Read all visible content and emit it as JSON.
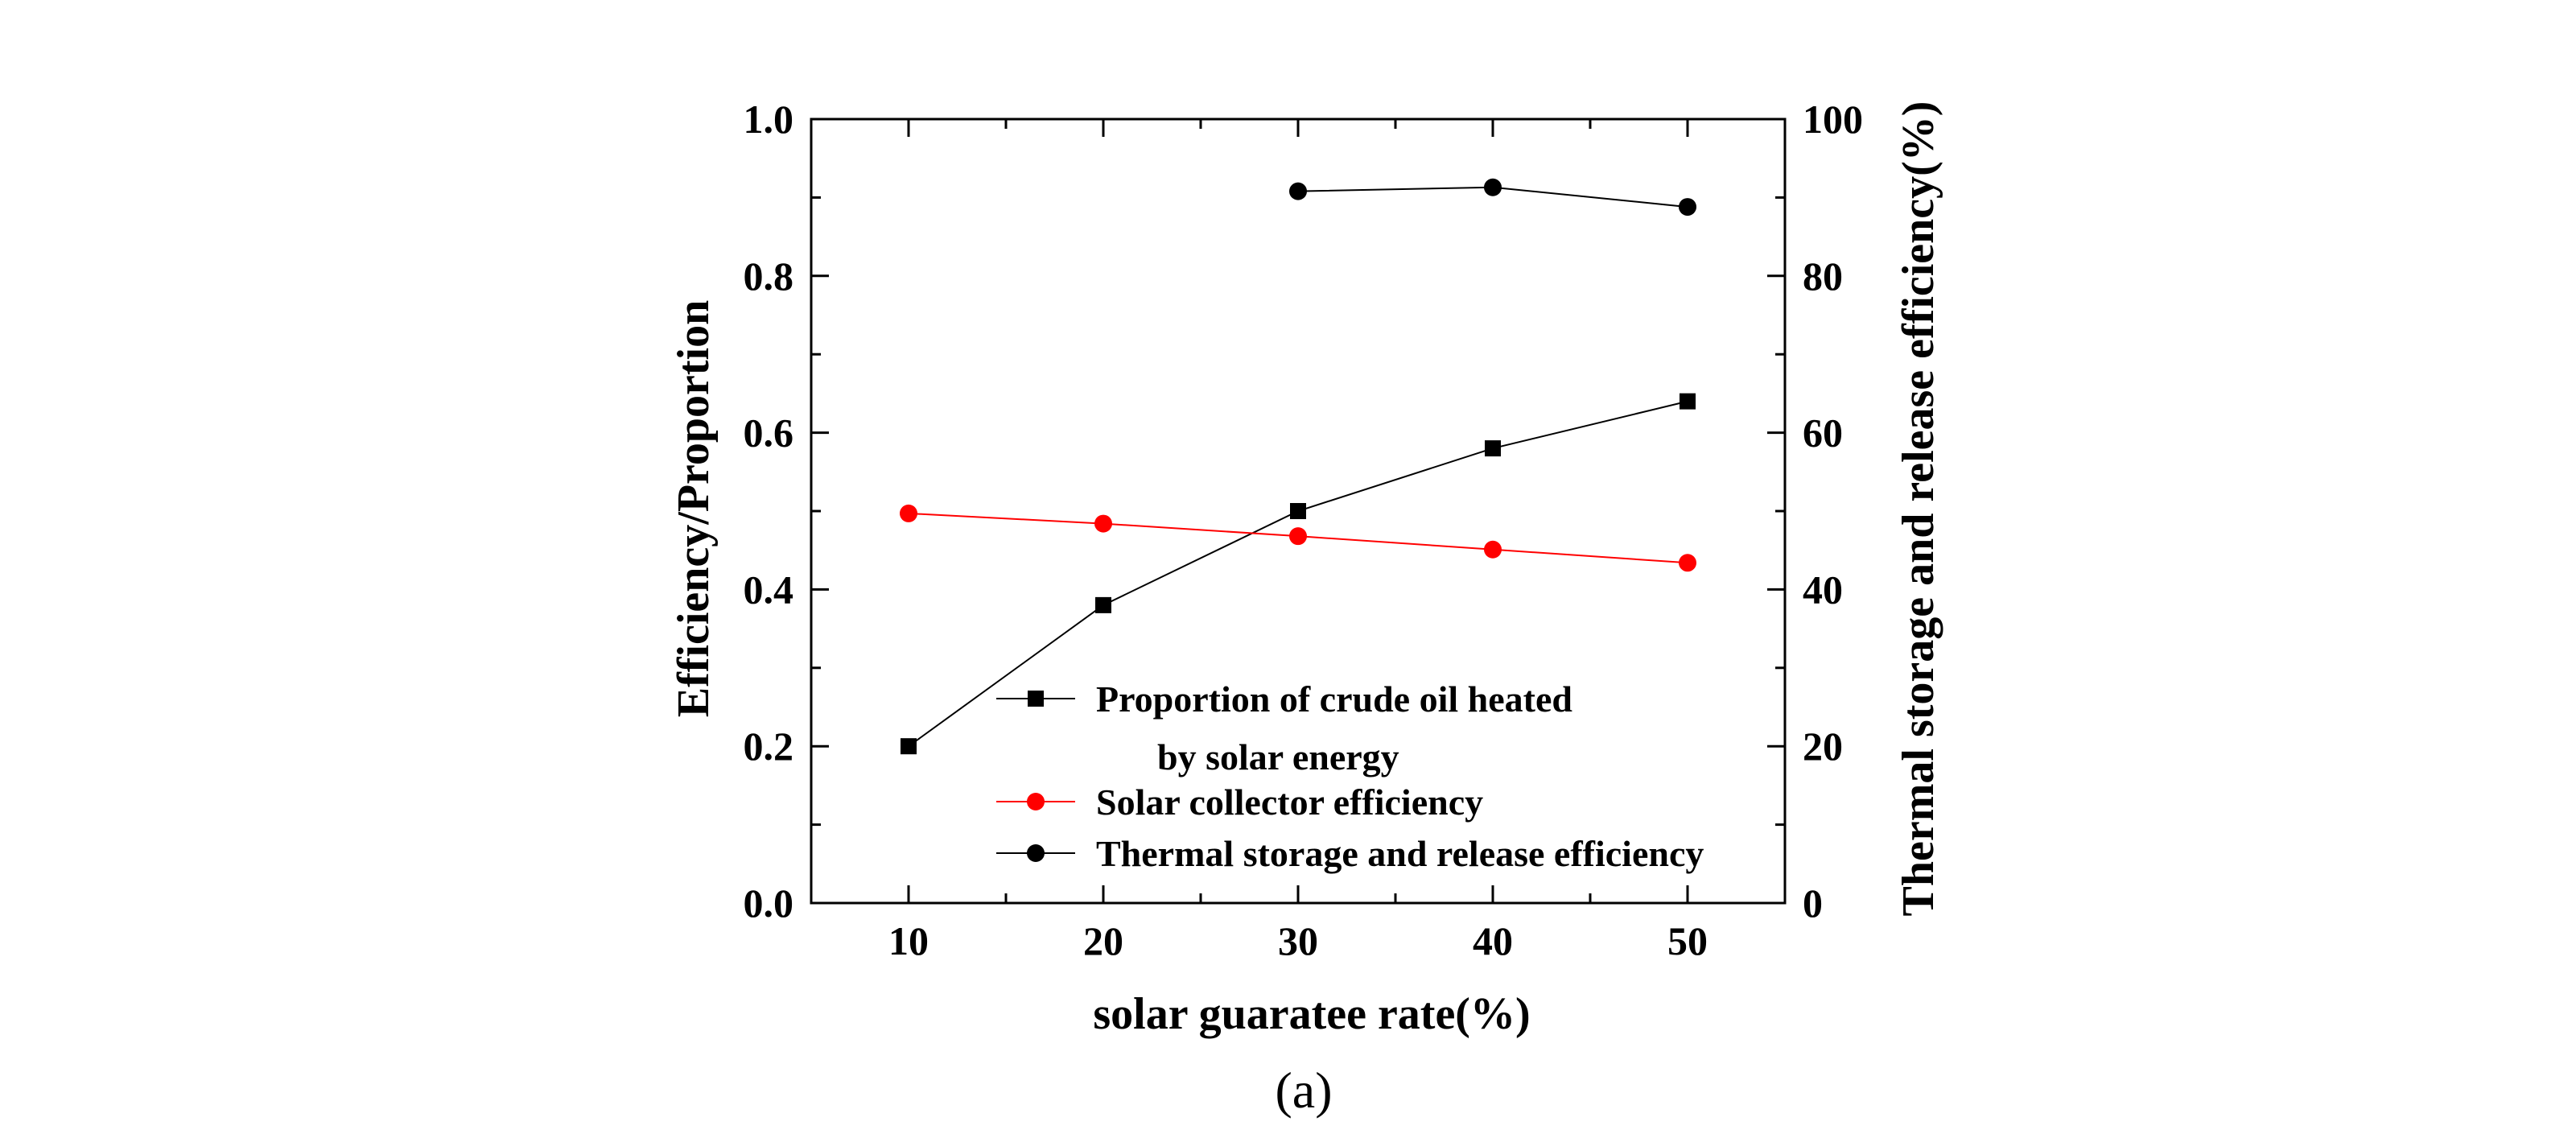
{
  "chart_data": {
    "type": "line",
    "x_label": "solar guaratee rate(%)",
    "y_label_left": "Efficiency/Proportion",
    "y_label_right": "Thermal storage and release efficiency(%)",
    "caption": "(a)",
    "x_ticks": [
      "10",
      "20",
      "30",
      "40",
      "50"
    ],
    "x_range": [
      5,
      55
    ],
    "y_left_ticks": [
      "0.0",
      "0.2",
      "0.4",
      "0.6",
      "0.8",
      "1.0"
    ],
    "y_left_range": [
      0,
      1
    ],
    "y_right_ticks": [
      "0",
      "20",
      "40",
      "60",
      "80",
      "100"
    ],
    "y_right_range": [
      0,
      100
    ],
    "legend_position": "bottom-right",
    "series": [
      {
        "name": "Proportion of crude oil heated",
        "name_line2": "by solar energy",
        "axis": "left",
        "color": "#000000",
        "marker": "square",
        "x": [
          10,
          20,
          30,
          40,
          50
        ],
        "values": [
          0.2,
          0.38,
          0.5,
          0.58,
          0.64
        ]
      },
      {
        "name": "Solar collector efficiency",
        "axis": "left",
        "color": "#ff0000",
        "marker": "circle",
        "x": [
          10,
          20,
          30,
          40,
          50
        ],
        "values": [
          0.497,
          0.484,
          0.468,
          0.451,
          0.434
        ]
      },
      {
        "name": "Thermal storage and release efficiency",
        "axis": "right",
        "color": "#000000",
        "marker": "circle",
        "x": [
          30,
          40,
          50
        ],
        "values": [
          90.8,
          91.3,
          88.8
        ]
      }
    ]
  }
}
